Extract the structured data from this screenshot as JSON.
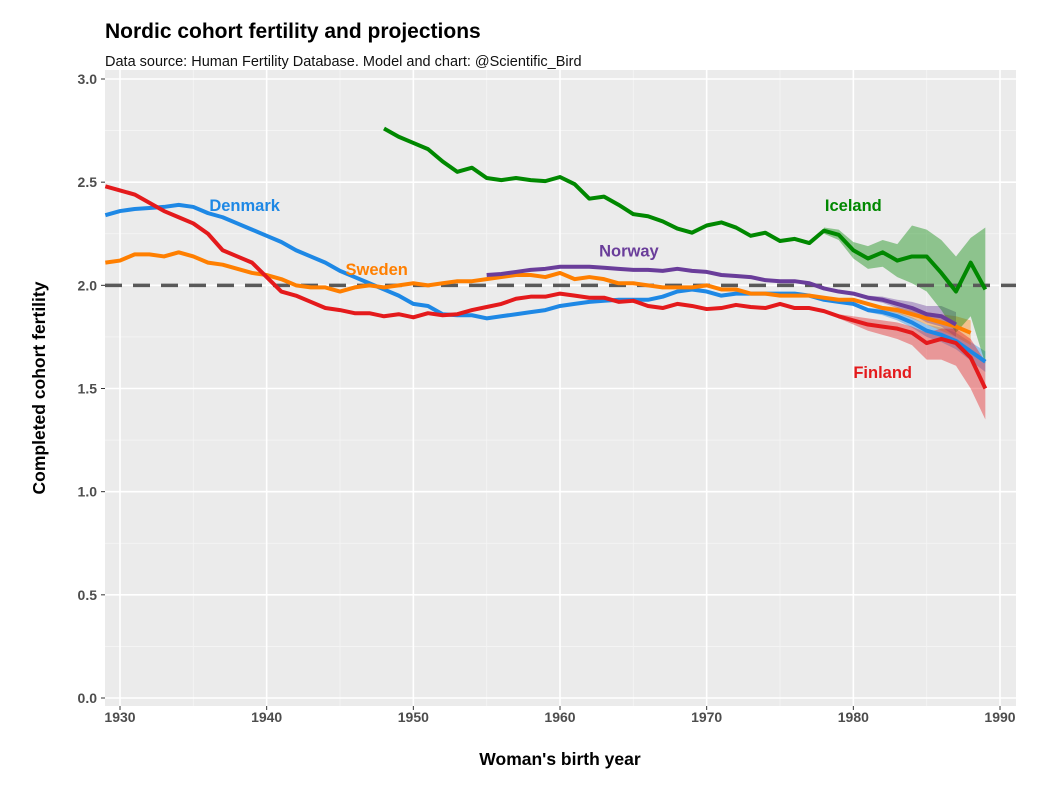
{
  "chart_data": {
    "type": "line",
    "title": "Nordic cohort fertility and projections",
    "subtitle": "Data source: Human Fertility Database.  Model and chart: @Scientific_Bird",
    "xlabel": "Woman's birth year",
    "ylabel": "Completed cohort fertility",
    "xlim": [
      1929,
      1991
    ],
    "ylim": [
      0,
      3
    ],
    "xticks": [
      "1930",
      "1940",
      "1950",
      "1960",
      "1970",
      "1980",
      "1990"
    ],
    "yticks": [
      "0.0",
      "0.5",
      "1.0",
      "1.5",
      "2.0",
      "2.5",
      "3.0"
    ],
    "grid": true,
    "reference_line": {
      "y": 2.0,
      "style": "dashed",
      "color": "#595959"
    },
    "series": [
      {
        "name": "Denmark",
        "color": "#1e88e5",
        "x_start": 1929,
        "values": [
          2.34,
          2.36,
          2.37,
          2.375,
          2.38,
          2.39,
          2.38,
          2.35,
          2.33,
          2.3,
          2.27,
          2.24,
          2.21,
          2.17,
          2.14,
          2.11,
          2.07,
          2.04,
          2.01,
          1.98,
          1.95,
          1.91,
          1.9,
          1.86,
          1.855,
          1.855,
          1.84,
          1.85,
          1.86,
          1.87,
          1.88,
          1.9,
          1.91,
          1.92,
          1.925,
          1.93,
          1.93,
          1.93,
          1.945,
          1.97,
          1.98,
          1.97,
          1.95,
          1.96,
          1.96,
          1.96,
          1.96,
          1.96,
          1.95,
          1.93,
          1.92,
          1.91,
          1.88,
          1.87,
          1.85,
          1.82,
          1.78,
          1.76,
          1.73,
          1.68,
          1.63
        ],
        "band_start": 1980,
        "band_halfwidth": [
          0.005,
          0.01,
          0.015,
          0.02,
          0.025,
          0.03,
          0.035,
          0.04,
          0.045,
          0.05
        ]
      },
      {
        "name": "Sweden",
        "color": "#ff7f00",
        "x_start": 1929,
        "values": [
          2.11,
          2.12,
          2.15,
          2.15,
          2.14,
          2.16,
          2.14,
          2.11,
          2.1,
          2.08,
          2.06,
          2.05,
          2.03,
          2.0,
          1.99,
          1.99,
          1.97,
          1.99,
          2.0,
          1.99,
          2.0,
          2.01,
          2.0,
          2.01,
          2.02,
          2.02,
          2.03,
          2.04,
          2.05,
          2.05,
          2.04,
          2.06,
          2.03,
          2.04,
          2.03,
          2.01,
          2.01,
          2.0,
          1.99,
          1.99,
          1.99,
          2.0,
          1.98,
          1.98,
          1.96,
          1.96,
          1.95,
          1.95,
          1.95,
          1.94,
          1.93,
          1.93,
          1.91,
          1.89,
          1.88,
          1.86,
          1.84,
          1.82,
          1.8,
          1.77
        ],
        "band_start": 1981,
        "band_halfwidth": [
          0.005,
          0.01,
          0.015,
          0.02,
          0.03,
          0.04,
          0.05,
          0.06
        ]
      },
      {
        "name": "Norway",
        "color": "#6a3d9a",
        "x_start": 1955,
        "values": [
          2.05,
          2.055,
          2.065,
          2.075,
          2.08,
          2.09,
          2.09,
          2.09,
          2.085,
          2.08,
          2.075,
          2.075,
          2.07,
          2.08,
          2.07,
          2.065,
          2.05,
          2.045,
          2.04,
          2.025,
          2.02,
          2.02,
          2.01,
          1.985,
          1.97,
          1.96,
          1.94,
          1.93,
          1.91,
          1.89,
          1.86,
          1.85,
          1.81
        ],
        "band_start": 1980,
        "band_halfwidth": [
          0.005,
          0.01,
          0.015,
          0.02,
          0.03,
          0.04,
          0.05,
          0.06
        ]
      },
      {
        "name": "Iceland",
        "color": "#008800",
        "x_start": 1948,
        "values": [
          2.76,
          2.72,
          2.69,
          2.66,
          2.6,
          2.55,
          2.57,
          2.52,
          2.51,
          2.52,
          2.51,
          2.505,
          2.525,
          2.49,
          2.42,
          2.43,
          2.39,
          2.345,
          2.335,
          2.31,
          2.275,
          2.255,
          2.29,
          2.305,
          2.28,
          2.24,
          2.255,
          2.215,
          2.225,
          2.205,
          2.265,
          2.245,
          2.17,
          2.13,
          2.16,
          2.12,
          2.14,
          2.14,
          2.06,
          1.97,
          2.11,
          1.98
        ],
        "band_start": 1978,
        "band_lower": [
          2.25,
          2.22,
          2.13,
          2.08,
          2.09,
          2.04,
          2.01,
          1.97,
          1.88,
          1.77,
          1.85,
          1.62
        ],
        "band_upper": [
          2.28,
          2.27,
          2.21,
          2.19,
          2.22,
          2.2,
          2.29,
          2.27,
          2.22,
          2.14,
          2.23,
          2.28
        ]
      },
      {
        "name": "Finland",
        "color": "#e41a1c",
        "x_start": 1929,
        "values": [
          2.48,
          2.46,
          2.44,
          2.4,
          2.36,
          2.33,
          2.3,
          2.25,
          2.17,
          2.14,
          2.11,
          2.04,
          1.97,
          1.95,
          1.92,
          1.89,
          1.88,
          1.865,
          1.865,
          1.85,
          1.86,
          1.845,
          1.865,
          1.855,
          1.86,
          1.88,
          1.895,
          1.91,
          1.935,
          1.945,
          1.945,
          1.96,
          1.95,
          1.94,
          1.94,
          1.92,
          1.925,
          1.9,
          1.89,
          1.91,
          1.9,
          1.885,
          1.89,
          1.905,
          1.895,
          1.89,
          1.91,
          1.89,
          1.89,
          1.875,
          1.85,
          1.83,
          1.81,
          1.8,
          1.79,
          1.77,
          1.72,
          1.74,
          1.72,
          1.65,
          1.5
        ],
        "band_start": 1979,
        "band_lower": [
          1.84,
          1.81,
          1.78,
          1.76,
          1.74,
          1.71,
          1.64,
          1.64,
          1.61,
          1.5,
          1.35
        ],
        "band_upper": [
          1.86,
          1.85,
          1.84,
          1.83,
          1.82,
          1.8,
          1.77,
          1.79,
          1.79,
          1.74,
          1.63
        ]
      }
    ]
  }
}
